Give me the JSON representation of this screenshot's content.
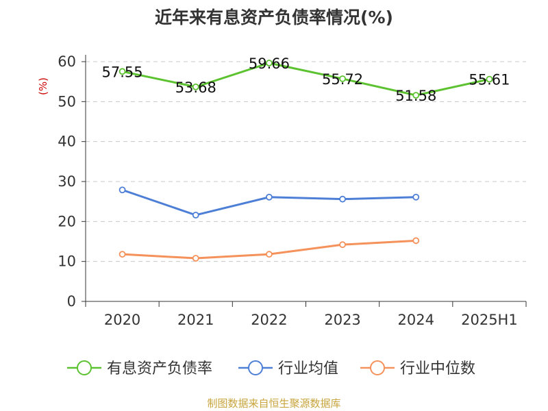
{
  "chart_data": {
    "type": "line",
    "title": "近年来有息资产负债率情况(%)",
    "ylabel": "(%)",
    "xlabel": "",
    "categories": [
      "2020",
      "2021",
      "2022",
      "2023",
      "2024",
      "2025H1"
    ],
    "ylim": [
      0,
      60
    ],
    "yticks": [
      0,
      10,
      20,
      30,
      40,
      50,
      60
    ],
    "grid": true,
    "legend_position": "bottom",
    "series": [
      {
        "name": "有息资产负债率",
        "color": "#5cc230",
        "values": [
          57.55,
          53.68,
          59.66,
          55.72,
          51.58,
          55.61
        ],
        "labels": [
          "57.55",
          "53.68",
          "59.66",
          "55.72",
          "51.58",
          "55.61"
        ]
      },
      {
        "name": "行业均值",
        "color": "#4e7fd6",
        "values": [
          27.9,
          21.6,
          26.1,
          25.6,
          26.1,
          null
        ]
      },
      {
        "name": "行业中位数",
        "color": "#f5915a",
        "values": [
          11.8,
          10.8,
          11.8,
          14.2,
          15.2,
          null
        ]
      }
    ]
  },
  "source": "制图数据来自恒生聚源数据库"
}
